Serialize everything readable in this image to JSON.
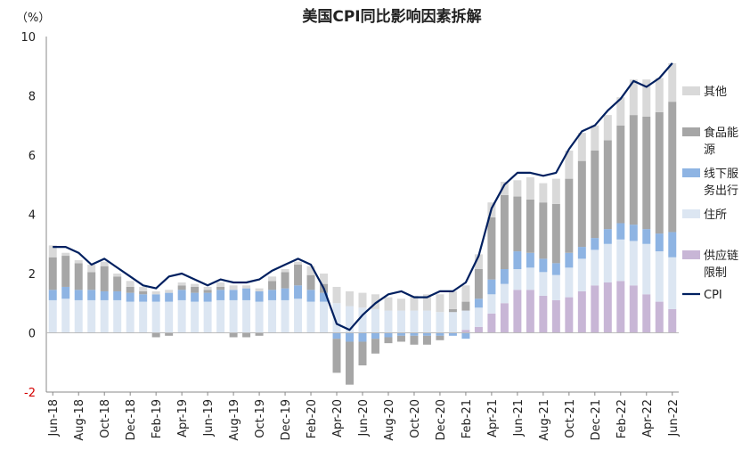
{
  "chart_data": {
    "type": "bar",
    "title": "美国CPI同比影响因素拆解",
    "unit_label": "（%）",
    "ylim": [
      -2,
      10
    ],
    "y_ticks": [
      "-2",
      "0",
      "2",
      "4",
      "6",
      "8",
      "10"
    ],
    "x_tick_labels": [
      "Jun-18",
      "Aug-18",
      "Oct-18",
      "Dec-18",
      "Feb-19",
      "Apr-19",
      "Jun-19",
      "Aug-19",
      "Oct-19",
      "Dec-19",
      "Feb-20",
      "Apr-20",
      "Jun-20",
      "Aug-20",
      "Oct-20",
      "Dec-20",
      "Feb-21",
      "Apr-21",
      "Jun-21",
      "Aug-21",
      "Oct-21",
      "Dec-21",
      "Feb-22",
      "Apr-22",
      "Jun-22"
    ],
    "categories": [
      "Jun-18",
      "Jul-18",
      "Aug-18",
      "Sep-18",
      "Oct-18",
      "Nov-18",
      "Dec-18",
      "Jan-19",
      "Feb-19",
      "Mar-19",
      "Apr-19",
      "May-19",
      "Jun-19",
      "Jul-19",
      "Aug-19",
      "Sep-19",
      "Oct-19",
      "Nov-19",
      "Dec-19",
      "Jan-20",
      "Feb-20",
      "Mar-20",
      "Apr-20",
      "May-20",
      "Jun-20",
      "Jul-20",
      "Aug-20",
      "Sep-20",
      "Oct-20",
      "Nov-20",
      "Dec-20",
      "Jan-21",
      "Feb-21",
      "Mar-21",
      "Apr-21",
      "May-21",
      "Jun-21",
      "Jul-21",
      "Aug-21",
      "Sep-21",
      "Oct-21",
      "Nov-21",
      "Dec-21",
      "Jan-22",
      "Feb-22",
      "Mar-22",
      "Apr-22",
      "May-22",
      "Jun-22"
    ],
    "legend_position": "right",
    "series": [
      {
        "name": "供应链限制",
        "color": "#c8b6d6",
        "values": [
          0,
          0,
          0,
          0,
          0,
          0,
          0,
          0,
          0,
          0,
          0,
          0,
          0,
          0,
          0,
          0,
          0,
          0,
          0,
          0,
          0,
          0,
          0,
          0,
          0,
          0,
          0,
          0,
          0,
          0,
          0,
          0,
          0.1,
          0.2,
          0.65,
          1.0,
          1.45,
          1.45,
          1.25,
          1.1,
          1.2,
          1.4,
          1.6,
          1.7,
          1.75,
          1.6,
          1.3,
          1.05,
          0.8
        ]
      },
      {
        "name": "住所",
        "color": "#dce6f2",
        "values": [
          1.1,
          1.15,
          1.1,
          1.1,
          1.1,
          1.1,
          1.05,
          1.05,
          1.05,
          1.05,
          1.1,
          1.05,
          1.05,
          1.1,
          1.1,
          1.1,
          1.05,
          1.1,
          1.1,
          1.15,
          1.05,
          1.05,
          1.0,
          0.9,
          0.85,
          0.8,
          0.75,
          0.75,
          0.75,
          0.75,
          0.7,
          0.7,
          0.65,
          0.65,
          0.65,
          0.65,
          0.7,
          0.75,
          0.8,
          0.85,
          1.0,
          1.1,
          1.2,
          1.3,
          1.4,
          1.5,
          1.7,
          1.7,
          1.75
        ]
      },
      {
        "name": "线下服务出行",
        "color": "#8eb4e3",
        "values": [
          0.35,
          0.4,
          0.35,
          0.35,
          0.3,
          0.3,
          0.3,
          0.25,
          0.25,
          0.3,
          0.35,
          0.3,
          0.3,
          0.35,
          0.35,
          0.4,
          0.35,
          0.35,
          0.4,
          0.45,
          0.4,
          0.3,
          -0.2,
          -0.3,
          -0.3,
          -0.2,
          -0.15,
          -0.1,
          -0.1,
          -0.1,
          -0.1,
          -0.1,
          -0.2,
          0.3,
          0.5,
          0.5,
          0.6,
          0.5,
          0.45,
          0.4,
          0.5,
          0.4,
          0.4,
          0.5,
          0.55,
          0.55,
          0.5,
          0.6,
          0.85
        ]
      },
      {
        "name": "食品能源",
        "color": "#a6a6a6",
        "values": [
          1.1,
          1.05,
          0.9,
          0.6,
          0.85,
          0.5,
          0.2,
          0.1,
          -0.15,
          -0.1,
          0.15,
          0.2,
          0.1,
          0.1,
          -0.15,
          -0.15,
          -0.1,
          0.3,
          0.55,
          0.7,
          0.5,
          0.3,
          -1.15,
          -1.45,
          -0.8,
          -0.5,
          -0.2,
          -0.2,
          -0.3,
          -0.3,
          -0.15,
          0.1,
          0.3,
          1.0,
          2.1,
          2.5,
          1.85,
          1.8,
          1.9,
          2.0,
          2.5,
          2.9,
          2.95,
          3.0,
          3.3,
          3.7,
          3.8,
          4.1,
          4.4
        ]
      },
      {
        "name": "其他",
        "color": "#d9d9d9",
        "values": [
          0.4,
          0.1,
          0.1,
          0.25,
          0.15,
          0.1,
          0.2,
          0.15,
          0.1,
          0.1,
          0.1,
          0.1,
          0.1,
          0.15,
          0.15,
          0.1,
          0.1,
          0.15,
          0.1,
          0.1,
          0.3,
          0.35,
          0.55,
          0.5,
          0.5,
          0.5,
          0.45,
          0.4,
          0.5,
          0.55,
          0.6,
          0.6,
          0.55,
          0.5,
          0.5,
          0.45,
          0.55,
          0.75,
          0.65,
          0.85,
          0.95,
          0.95,
          0.85,
          0.85,
          0.95,
          1.2,
          1.25,
          1.15,
          1.3
        ]
      },
      {
        "name": "CPI",
        "color": "#002060",
        "type": "line",
        "values": [
          2.9,
          2.9,
          2.7,
          2.3,
          2.5,
          2.2,
          1.9,
          1.6,
          1.5,
          1.9,
          2.0,
          1.8,
          1.6,
          1.8,
          1.7,
          1.7,
          1.8,
          2.1,
          2.3,
          2.5,
          2.3,
          1.5,
          0.3,
          0.1,
          0.6,
          1.0,
          1.3,
          1.4,
          1.2,
          1.2,
          1.4,
          1.4,
          1.7,
          2.6,
          4.2,
          5.0,
          5.4,
          5.4,
          5.3,
          5.4,
          6.2,
          6.8,
          7.0,
          7.5,
          7.9,
          8.5,
          8.3,
          8.6,
          9.1
        ]
      }
    ]
  }
}
